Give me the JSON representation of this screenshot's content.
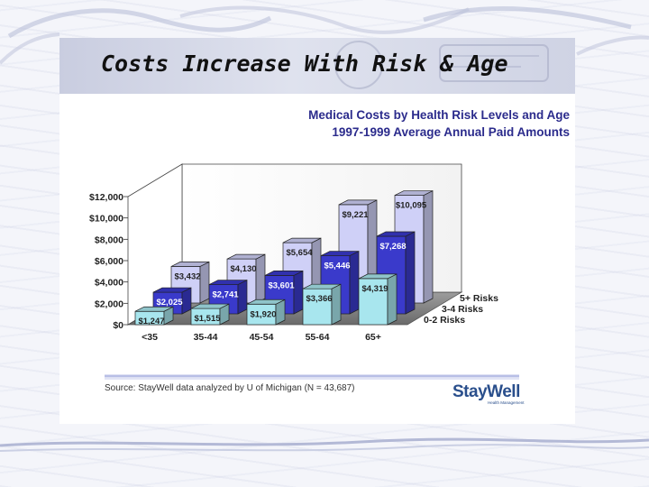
{
  "slide": {
    "title": "Costs Increase With Risk & Age"
  },
  "chart_data": {
    "type": "bar",
    "title": "Medical Costs by Health Risk Levels and Age",
    "subtitle": "1997-1999 Average Annual Paid Amounts",
    "categories": [
      "<35",
      "35-44",
      "45-54",
      "55-64",
      "65+"
    ],
    "series": [
      {
        "name": "0-2 Risks",
        "values": [
          1247,
          1515,
          1920,
          3366,
          4319
        ],
        "labels": [
          "$1,247",
          "$1,515",
          "$1,920",
          "$3,366",
          "$4,319"
        ],
        "color": "#a8e6ee"
      },
      {
        "name": "3-4 Risks",
        "values": [
          2025,
          2741,
          3601,
          5446,
          7268
        ],
        "labels": [
          "$2,025",
          "$2,741",
          "$3,601",
          "$5,446",
          "$7,268"
        ],
        "color": "#3a3acb"
      },
      {
        "name": "5+ Risks",
        "values": [
          3432,
          4130,
          5654,
          9221,
          10095
        ],
        "labels": [
          "$3,432",
          "$4,130",
          "$5,654",
          "$9,221",
          "$10,095"
        ],
        "color": "#cfd0f7"
      }
    ],
    "yticks": [
      "$0",
      "$2,000",
      "$4,000",
      "$6,000",
      "$8,000",
      "$10,000",
      "$12,000"
    ],
    "ylim": [
      0,
      12000
    ],
    "xlabel": "",
    "ylabel": "",
    "grid": false,
    "legend": "right, along depth axis"
  },
  "footer": {
    "source": "Source: StayWell data analyzed by U of Michigan (N = 43,687)",
    "logo_text": "StayWell",
    "logo_tagline": "Health Management"
  }
}
